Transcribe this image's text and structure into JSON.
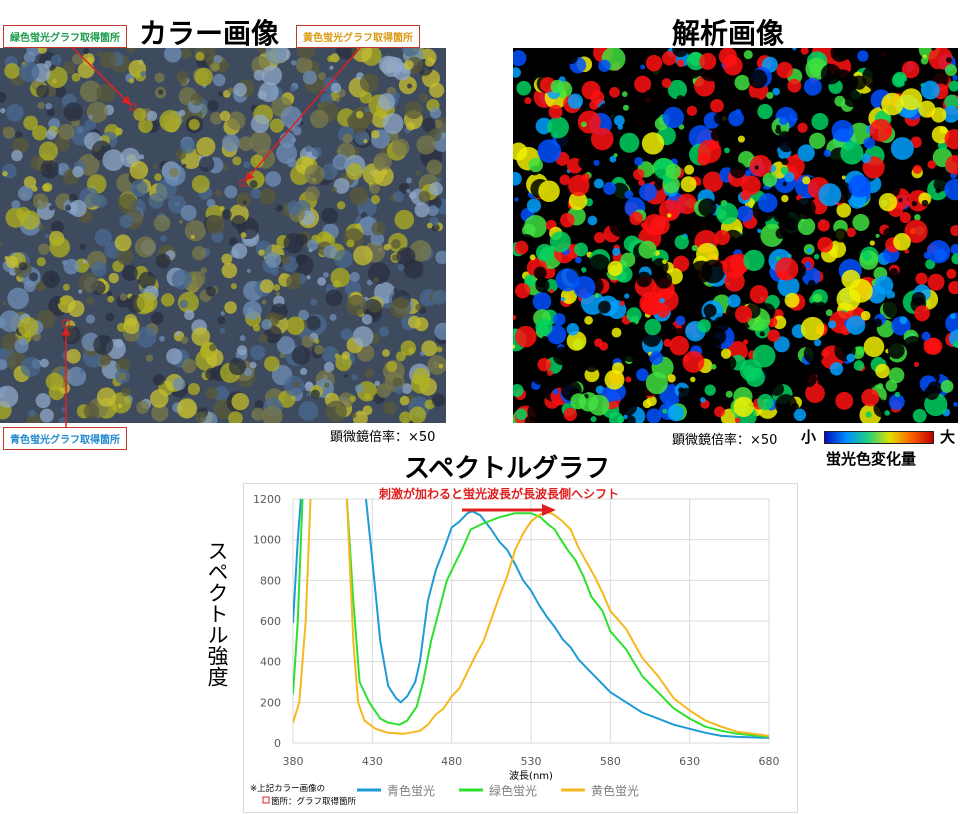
{
  "color_image": {
    "title": "カラー画像",
    "magnification": "顕微鏡倍率：×50",
    "labels": {
      "green": "緑色蛍光グラフ取得箇所",
      "yellow": "黄色蛍光グラフ取得箇所",
      "blue": "青色蛍光グラフ取得箇所"
    }
  },
  "analysis_image": {
    "title": "解析画像",
    "magnification": "顕微鏡倍率：×50",
    "colorbar_min": "小",
    "colorbar_max": "大",
    "colorbar_label": "蛍光色変化量"
  },
  "colors": {
    "blue": "#1e9bd7",
    "green": "#2ee02e",
    "yellow": "#f5b81e",
    "annotation": "#e02020"
  },
  "chart_data": {
    "type": "line",
    "title": "スペクトルグラフ",
    "xlabel": "波長(nm)",
    "ylabel": "スペクトル強度",
    "xlim": [
      380,
      680
    ],
    "ylim": [
      0,
      1200
    ],
    "xticks": [
      380,
      430,
      480,
      530,
      580,
      630,
      680
    ],
    "yticks": [
      0,
      200,
      400,
      600,
      800,
      1000,
      1200
    ],
    "grid": true,
    "legend_position": "bottom",
    "annotation": "刺激が加わると蛍光波長が長波長側へシフト",
    "note_line1": "※上記カラー画像の",
    "note_line2": "箇所：グラフ取得箇所",
    "series": [
      {
        "name": "青色蛍光",
        "color": "#1e9bd7",
        "x": [
          380,
          383,
          385,
          null,
          426,
          430,
          435,
          440,
          445,
          448,
          452,
          457,
          460,
          465,
          470,
          475,
          480,
          485,
          490,
          493,
          498,
          505,
          510,
          515,
          520,
          525,
          530,
          535,
          540,
          545,
          550,
          555,
          560,
          565,
          570,
          575,
          580,
          590,
          600,
          610,
          620,
          630,
          640,
          650,
          660,
          680
        ],
        "y": [
          590,
          1000,
          1200,
          null,
          1200,
          900,
          500,
          280,
          220,
          200,
          230,
          300,
          400,
          700,
          850,
          950,
          1060,
          1090,
          1130,
          1140,
          1120,
          1050,
          990,
          950,
          880,
          800,
          750,
          680,
          620,
          570,
          510,
          470,
          410,
          370,
          330,
          290,
          250,
          200,
          150,
          120,
          90,
          70,
          50,
          35,
          30,
          25
        ]
      },
      {
        "name": "緑色蛍光",
        "color": "#2ee02e",
        "x": [
          380,
          383,
          386,
          null,
          414,
          418,
          422,
          428,
          435,
          440,
          447,
          452,
          458,
          462,
          467,
          472,
          477,
          482,
          487,
          492,
          500,
          510,
          520,
          530,
          536,
          540,
          545,
          548,
          553,
          558,
          563,
          568,
          575,
          580,
          590,
          600,
          610,
          620,
          630,
          640,
          650,
          660,
          680
        ],
        "y": [
          240,
          600,
          1200,
          null,
          1200,
          700,
          300,
          200,
          120,
          100,
          90,
          110,
          180,
          300,
          500,
          650,
          800,
          880,
          960,
          1050,
          1080,
          1110,
          1130,
          1130,
          1110,
          1080,
          1050,
          1010,
          950,
          900,
          820,
          720,
          650,
          550,
          460,
          330,
          250,
          170,
          120,
          80,
          60,
          45,
          30
        ]
      },
      {
        "name": "黄色蛍光",
        "color": "#f5b81e",
        "x": [
          380,
          384,
          388,
          391,
          null,
          414,
          418,
          421,
          425,
          432,
          440,
          450,
          460,
          465,
          470,
          475,
          480,
          485,
          490,
          495,
          500,
          505,
          510,
          515,
          520,
          525,
          530,
          535,
          540,
          545,
          550,
          555,
          560,
          565,
          570,
          575,
          580,
          590,
          600,
          610,
          620,
          630,
          640,
          650,
          660,
          680
        ],
        "y": [
          100,
          200,
          600,
          1200,
          null,
          1200,
          500,
          200,
          110,
          70,
          50,
          45,
          60,
          90,
          140,
          170,
          230,
          270,
          350,
          430,
          500,
          610,
          720,
          820,
          950,
          1030,
          1090,
          1120,
          1140,
          1120,
          1090,
          1050,
          960,
          890,
          820,
          740,
          650,
          560,
          420,
          330,
          220,
          160,
          110,
          80,
          55,
          35
        ]
      }
    ]
  }
}
